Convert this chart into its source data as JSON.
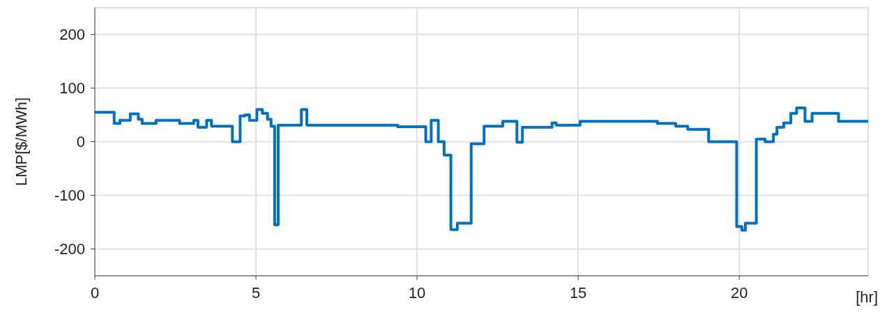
{
  "chart_data": {
    "type": "step",
    "xlabel": "[hr]",
    "ylabel": "LMP[$/MWh]",
    "xlim": [
      0,
      24
    ],
    "xticks": [
      0,
      5,
      10,
      15,
      20
    ],
    "ylim": [
      -250,
      250
    ],
    "yticks": [
      -200,
      -100,
      0,
      100,
      200
    ],
    "grid": true,
    "line_style": "solid",
    "marker": "none",
    "series": [
      {
        "color": "#0072bd",
        "x": [
          0,
          0.6,
          0.78,
          1.1,
          1.35,
          1.47,
          1.9,
          2.63,
          3.07,
          3.2,
          3.47,
          3.62,
          4.27,
          4.51,
          4.66,
          4.8,
          5.03,
          5.2,
          5.36,
          5.47,
          5.58,
          5.69,
          6.41,
          6.58,
          9.4,
          10.27,
          10.44,
          10.66,
          10.84,
          11.05,
          11.25,
          11.68,
          12.08,
          12.66,
          13.1,
          13.27,
          14.19,
          14.32,
          15.06,
          17.46,
          18.03,
          18.4,
          19.05,
          19.92,
          20.08,
          20.19,
          20.53,
          20.8,
          21.06,
          21.17,
          21.38,
          21.6,
          21.78,
          22.04,
          22.26,
          23.08,
          24
        ],
        "values": [
          55,
          34,
          40,
          52,
          42,
          34,
          40,
          34,
          40,
          27,
          40,
          29,
          0,
          48,
          50,
          40,
          60,
          53,
          42,
          29,
          -155,
          31,
          60,
          31,
          28,
          0,
          40,
          0,
          -25,
          -164,
          -152,
          -4,
          29,
          38,
          -1,
          27,
          35,
          31,
          38,
          34,
          29,
          23,
          0,
          -158,
          -165,
          -152,
          5,
          0,
          14,
          27,
          35,
          53,
          63,
          38,
          53,
          38,
          38
        ]
      }
    ]
  }
}
